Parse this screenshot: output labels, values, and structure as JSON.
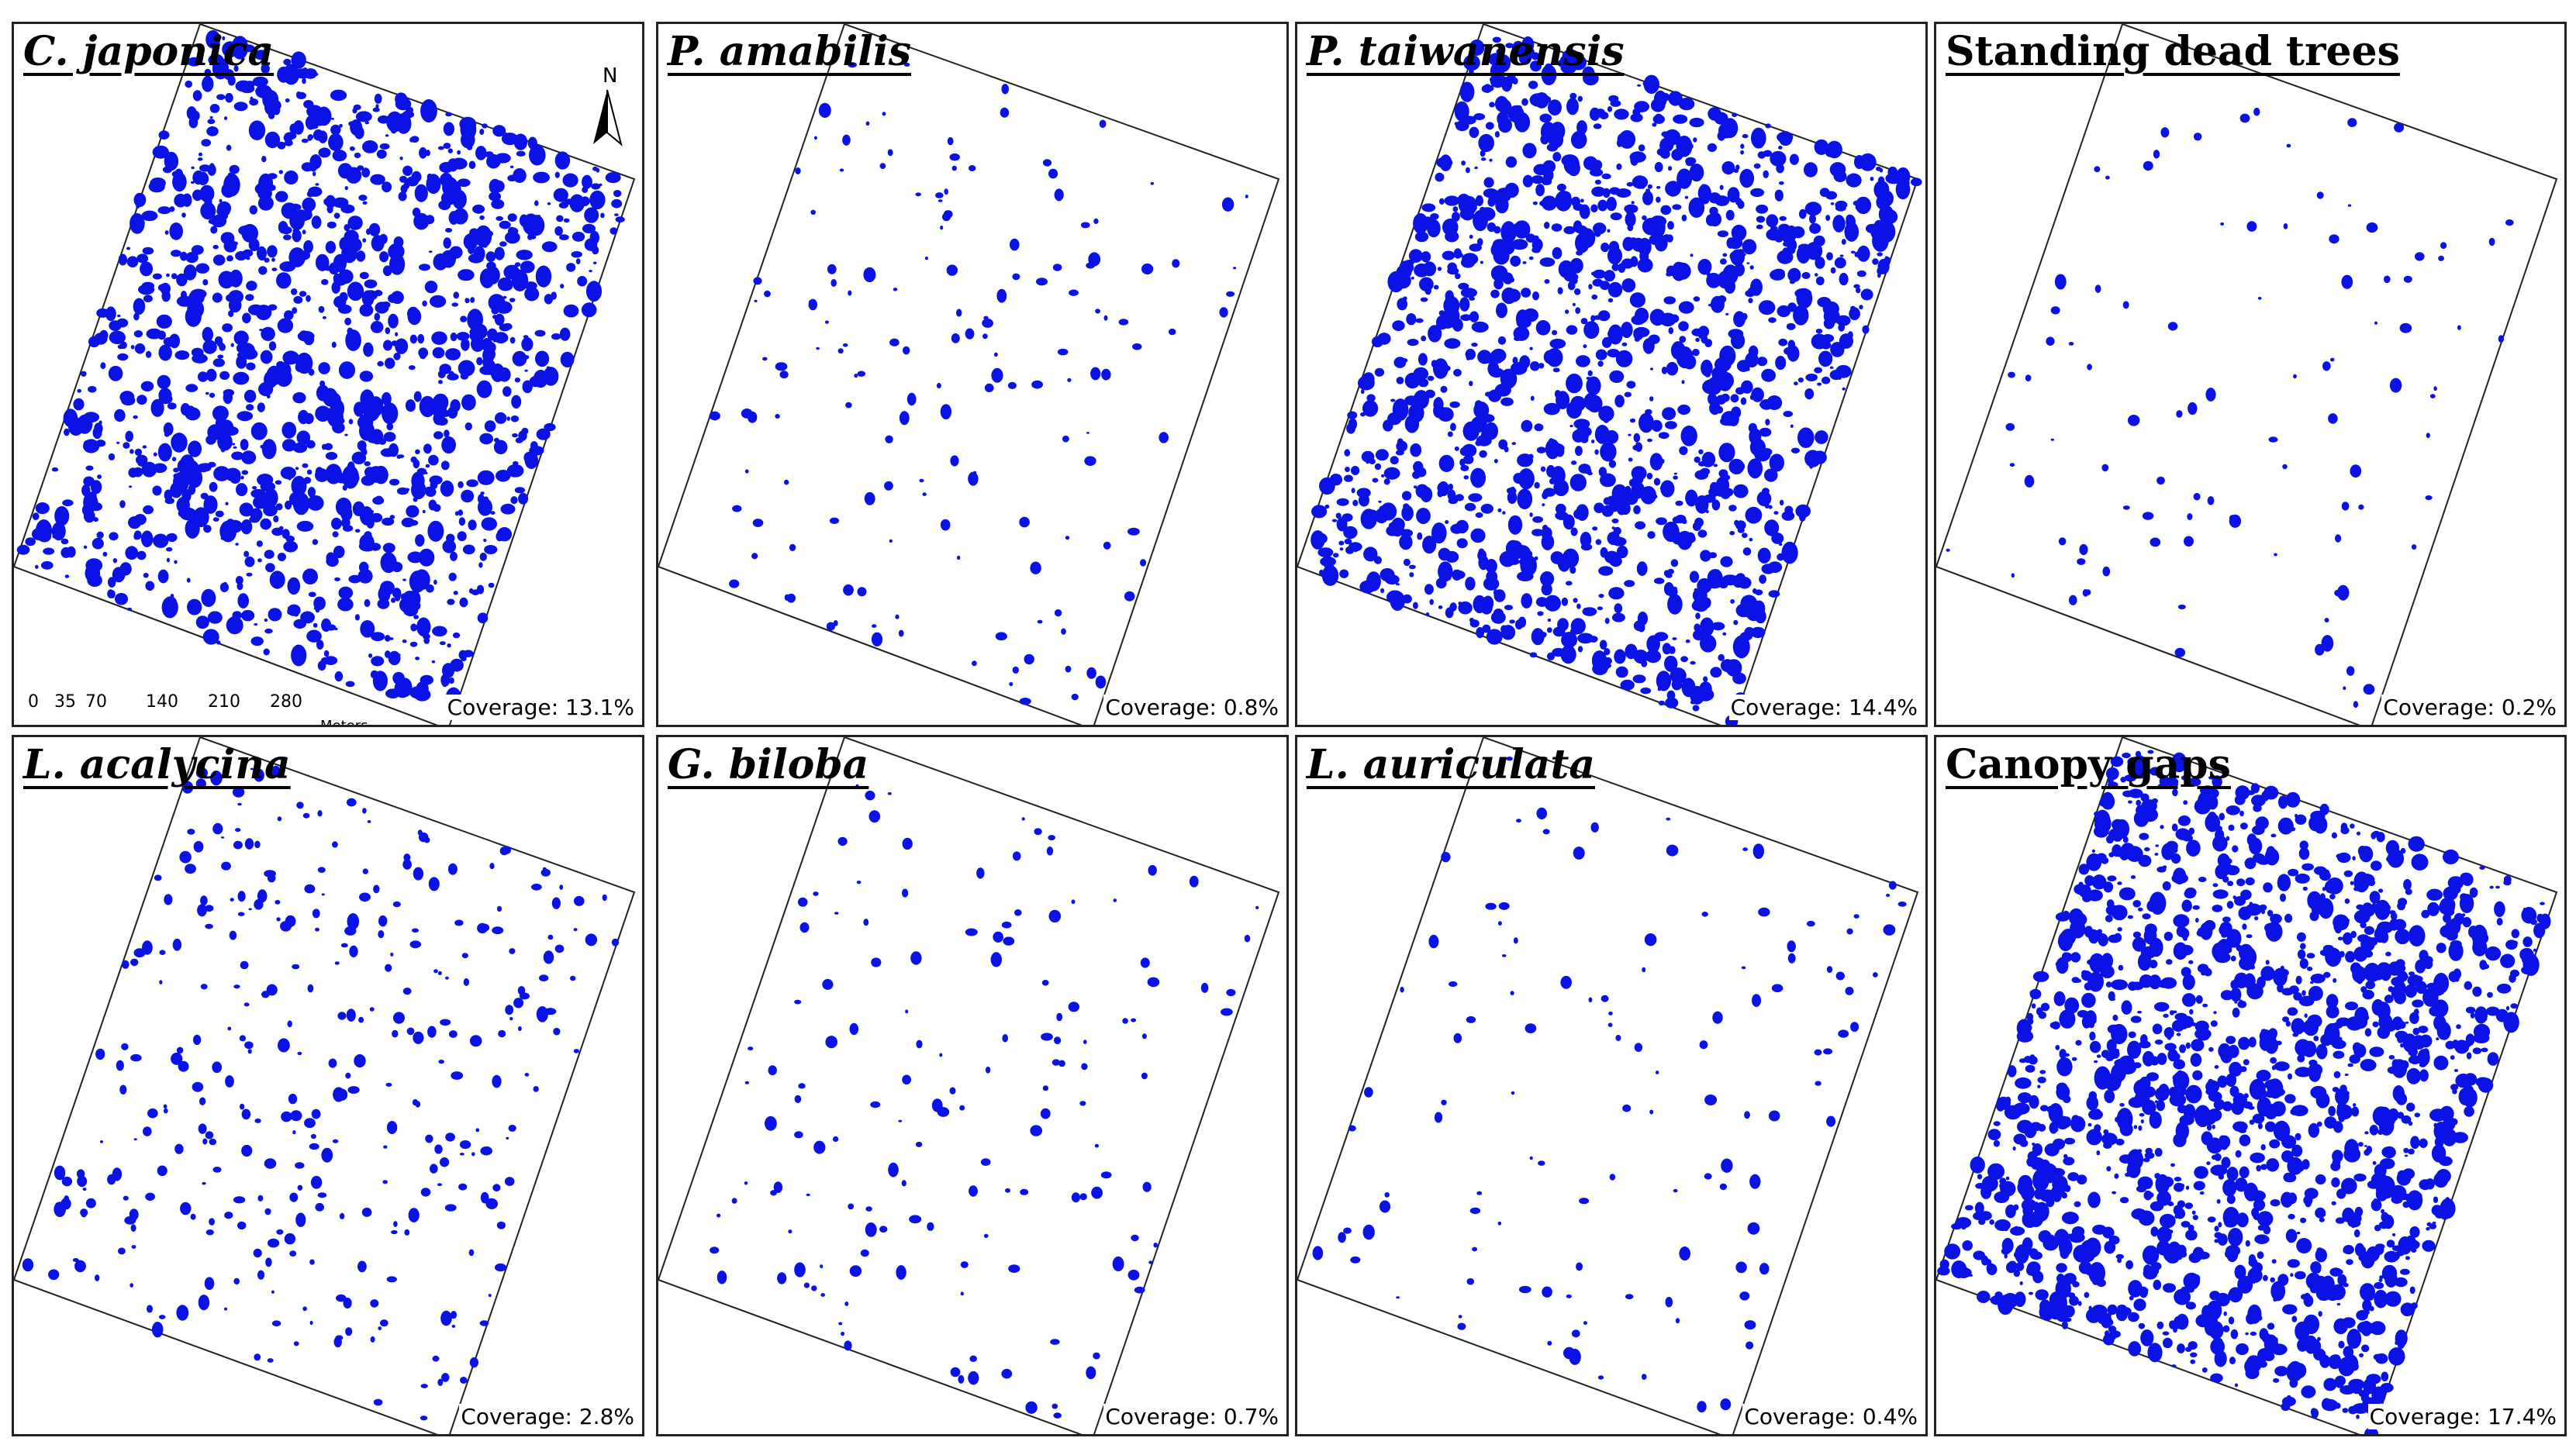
{
  "panels": [
    {
      "title": "C. japonica",
      "italic": true,
      "coverage": "Coverage: 13.1%",
      "density": 0.131
    },
    {
      "title": "P. amabilis",
      "italic": true,
      "coverage": "Coverage: 0.8%",
      "density": 0.008
    },
    {
      "title": "P. taiwanensis",
      "italic": true,
      "coverage": "Coverage: 14.4%",
      "density": 0.144
    },
    {
      "title": "Standing dead trees",
      "italic": false,
      "coverage": "Coverage: 0.2%",
      "density": 0.002
    },
    {
      "title": "L. acalycina",
      "italic": true,
      "coverage": "Coverage: 2.8%",
      "density": 0.028
    },
    {
      "title": "G. biloba",
      "italic": true,
      "coverage": "Coverage: 0.7%",
      "density": 0.007
    },
    {
      "title": "L. auriculata",
      "italic": true,
      "coverage": "Coverage: 0.4%",
      "density": 0.004
    },
    {
      "title": "Canopy gaps",
      "italic": false,
      "coverage": "Coverage: 17.4%",
      "density": 0.174
    }
  ],
  "north_arrow": {
    "label": "N"
  },
  "scale_bar": {
    "ticks": [
      "0",
      "35",
      "70",
      "140",
      "210",
      "280"
    ],
    "unit": "Meters"
  },
  "colors": {
    "patch": "#0a12e6",
    "border": "#222222",
    "background": "#ffffff"
  }
}
